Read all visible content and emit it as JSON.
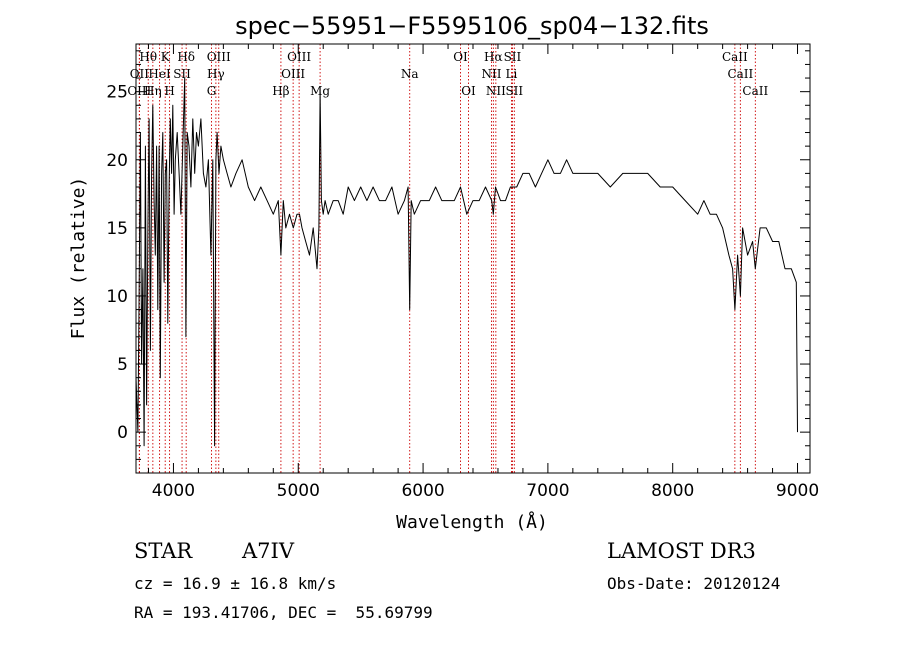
{
  "chart_data": {
    "type": "line",
    "title": "spec−55951−F5595106_sp04−132.fits",
    "xlabel": "Wavelength (Å)",
    "ylabel": "Flux (relative)",
    "xlim": [
      3700,
      9100
    ],
    "ylim": [
      -3,
      28.5
    ],
    "xticks": [
      4000,
      5000,
      6000,
      7000,
      8000,
      9000
    ],
    "yticks": [
      0,
      5,
      10,
      15,
      20,
      25
    ],
    "spectral_lines": [
      {
        "label": "Hθ",
        "wavelength": 3798,
        "row": 1
      },
      {
        "label": "OII",
        "wavelength": 3727,
        "row": 2
      },
      {
        "label": "OIII",
        "wavelength": 3727,
        "row": 3
      },
      {
        "label": "K",
        "wavelength": 3934,
        "row": 1
      },
      {
        "label": "HeI",
        "wavelength": 3889,
        "row": 2
      },
      {
        "label": "Hη",
        "wavelength": 3835,
        "row": 3
      },
      {
        "label": "H",
        "wavelength": 3969,
        "row": 3
      },
      {
        "label": "SII",
        "wavelength": 4069,
        "row": 2
      },
      {
        "label": "Hδ",
        "wavelength": 4102,
        "row": 1
      },
      {
        "label": "OIII",
        "wavelength": 4363,
        "row": 1
      },
      {
        "label": "Hγ",
        "wavelength": 4340,
        "row": 2
      },
      {
        "label": "G",
        "wavelength": 4305,
        "row": 3
      },
      {
        "label": "Hβ",
        "wavelength": 4861,
        "row": 3
      },
      {
        "label": "OIII",
        "wavelength": 5007,
        "row": 1
      },
      {
        "label": "OIII",
        "wavelength": 4959,
        "row": 2
      },
      {
        "label": "Mg",
        "wavelength": 5175,
        "row": 3
      },
      {
        "label": "Na",
        "wavelength": 5893,
        "row": 2
      },
      {
        "label": "OI",
        "wavelength": 6300,
        "row": 1
      },
      {
        "label": "OI",
        "wavelength": 6364,
        "row": 3
      },
      {
        "label": "Hα",
        "wavelength": 6563,
        "row": 1
      },
      {
        "label": "NII",
        "wavelength": 6548,
        "row": 2
      },
      {
        "label": "NII",
        "wavelength": 6583,
        "row": 3
      },
      {
        "label": "SII",
        "wavelength": 6716,
        "row": 1
      },
      {
        "label": "Li",
        "wavelength": 6708,
        "row": 2
      },
      {
        "label": "SII",
        "wavelength": 6731,
        "row": 3
      },
      {
        "label": "CaII",
        "wavelength": 8498,
        "row": 1
      },
      {
        "label": "CaII",
        "wavelength": 8542,
        "row": 2
      },
      {
        "label": "CaII",
        "wavelength": 8662,
        "row": 3
      }
    ],
    "series": [
      {
        "name": "flux",
        "x": [
          3700,
          3715,
          3725,
          3735,
          3745,
          3755,
          3765,
          3775,
          3785,
          3795,
          3805,
          3815,
          3825,
          3835,
          3845,
          3855,
          3865,
          3875,
          3885,
          3895,
          3905,
          3915,
          3925,
          3935,
          3945,
          3955,
          3965,
          3975,
          3985,
          3995,
          4005,
          4015,
          4030,
          4045,
          4060,
          4075,
          4090,
          4100,
          4110,
          4125,
          4140,
          4155,
          4170,
          4185,
          4200,
          4220,
          4240,
          4260,
          4280,
          4300,
          4315,
          4330,
          4340,
          4350,
          4365,
          4380,
          4400,
          4430,
          4460,
          4500,
          4550,
          4600,
          4650,
          4700,
          4750,
          4800,
          4840,
          4861,
          4880,
          4900,
          4930,
          4960,
          4990,
          5010,
          5030,
          5060,
          5090,
          5120,
          5150,
          5165,
          5175,
          5185,
          5200,
          5215,
          5240,
          5280,
          5320,
          5360,
          5400,
          5450,
          5500,
          5550,
          5600,
          5650,
          5700,
          5750,
          5800,
          5850,
          5880,
          5893,
          5905,
          5930,
          5980,
          6050,
          6100,
          6150,
          6200,
          6250,
          6300,
          6350,
          6400,
          6450,
          6500,
          6550,
          6563,
          6580,
          6620,
          6660,
          6700,
          6750,
          6800,
          6850,
          6900,
          6950,
          7000,
          7050,
          7100,
          7150,
          7200,
          7300,
          7400,
          7500,
          7600,
          7700,
          7800,
          7900,
          8000,
          8100,
          8200,
          8250,
          8300,
          8350,
          8400,
          8450,
          8480,
          8498,
          8520,
          8542,
          8560,
          8600,
          8640,
          8662,
          8700,
          8750,
          8800,
          8850,
          8900,
          8950,
          8990,
          9000
        ],
        "y": [
          4,
          0,
          10,
          22,
          5,
          12,
          -1,
          21,
          2,
          15,
          23,
          6,
          19,
          24,
          17,
          13,
          21,
          9,
          21,
          4,
          19,
          22,
          11,
          19,
          20,
          8,
          18,
          23,
          19,
          24,
          16,
          20,
          22,
          19,
          16,
          21,
          26,
          7,
          22,
          21,
          18,
          23,
          19,
          22,
          21,
          23,
          19,
          18,
          20,
          13,
          20,
          -1,
          20,
          22,
          19,
          21,
          20,
          19,
          18,
          19,
          20,
          18,
          17,
          18,
          17,
          16,
          17,
          13,
          17,
          15,
          16,
          15,
          16,
          16,
          15,
          14,
          13,
          15,
          12,
          15,
          25,
          17,
          16,
          17,
          16,
          17,
          17,
          16,
          18,
          17,
          18,
          17,
          18,
          17,
          17,
          18,
          16,
          17,
          18,
          9,
          17,
          16,
          17,
          17,
          18,
          17,
          17,
          17,
          18,
          16,
          17,
          17,
          18,
          17,
          16,
          18,
          17,
          17,
          18,
          18,
          19,
          19,
          18,
          19,
          20,
          19,
          19,
          20,
          19,
          19,
          19,
          18,
          19,
          19,
          19,
          18,
          18,
          17,
          16,
          17,
          16,
          16,
          15,
          13,
          12,
          9,
          13,
          10,
          15,
          13,
          14,
          12,
          15,
          15,
          14,
          14,
          12,
          12,
          11,
          0
        ]
      }
    ]
  },
  "info": {
    "class_label": "STAR",
    "subclass": "A7IV",
    "survey": "LAMOST DR3",
    "velocity": "cz = 16.9 ± 16.8 km/s",
    "obs_date": "Obs-Date: 20120124",
    "coords": "RA = 193.41706, DEC =  55.69799"
  },
  "colors": {
    "spectrum": "#000000",
    "line_marker": "#cc0000",
    "axes": "#000000"
  }
}
